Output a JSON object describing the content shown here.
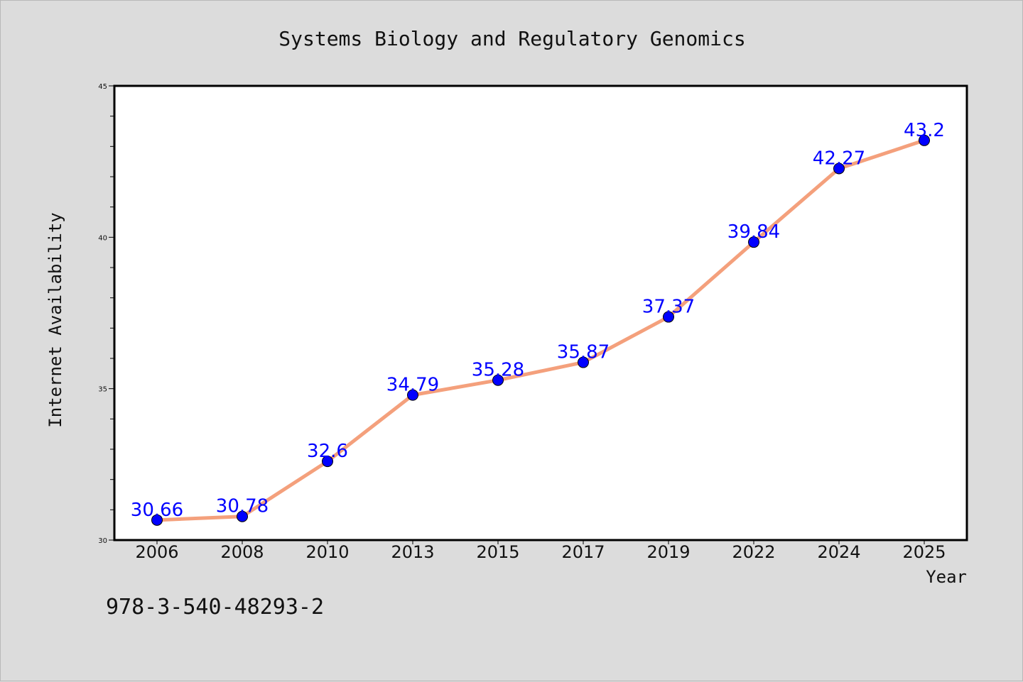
{
  "chart_data": {
    "type": "line",
    "title": "Systems Biology and Regulatory Genomics",
    "xlabel": "Year",
    "ylabel": "Internet Availability",
    "categories": [
      "2006",
      "2008",
      "2010",
      "2013",
      "2015",
      "2017",
      "2019",
      "2022",
      "2024",
      "2025"
    ],
    "series": [
      {
        "values": [
          30.66,
          30.78,
          32.6,
          34.79,
          35.28,
          35.87,
          37.37,
          39.84,
          42.27,
          43.2
        ],
        "line_color": "#f4a07c",
        "marker_color": "#0000ff"
      }
    ],
    "data_labels": [
      "30.66",
      "30.78",
      "32.6",
      "34.79",
      "35.28",
      "35.87",
      "37.37",
      "39.84",
      "42.27",
      "43.2"
    ],
    "ylim": [
      30,
      45
    ],
    "yticks": [
      "30",
      "35",
      "40",
      "45"
    ],
    "grid": false,
    "plot_background": "#ffffff",
    "figure_background": "#dcdcdc"
  },
  "footnote": "978-3-540-48293-2"
}
